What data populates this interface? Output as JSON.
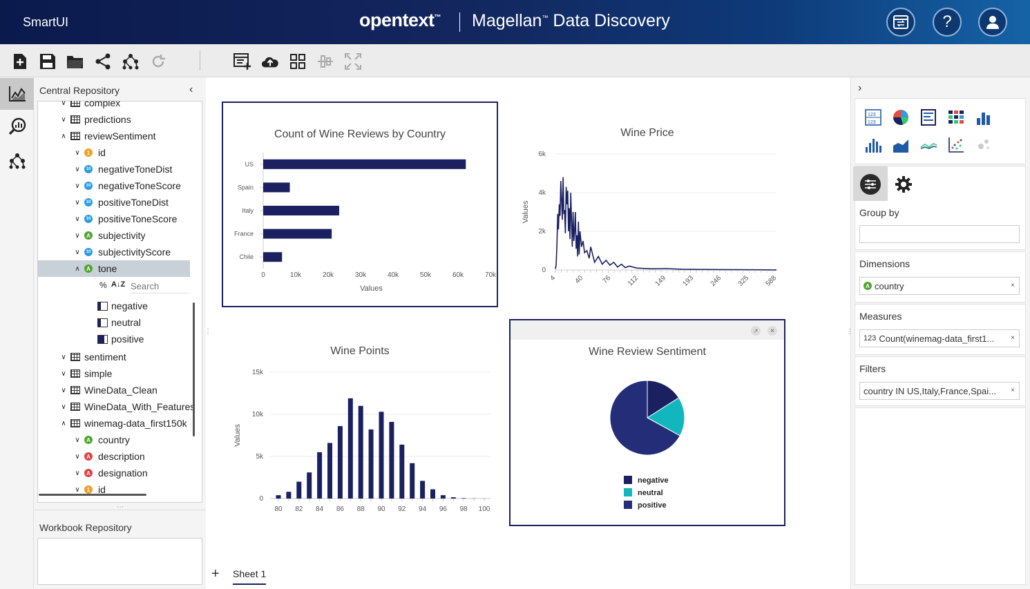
{
  "header": {
    "app_name": "SmartUI",
    "brand": "opentext",
    "brand_tm": "™",
    "product": "Magellan",
    "product_tm": "™",
    "product_suffix": "Data Discovery",
    "buttons": [
      "switch-icon",
      "help-icon",
      "user-icon"
    ],
    "help_glyph": "?"
  },
  "toolbar": {
    "left_icons": [
      "new-icon",
      "save-icon",
      "open-folder-icon",
      "share-icon",
      "workflow-icon",
      "refresh-icon"
    ],
    "right_icons": [
      "add-chart-icon",
      "cloud-upload-icon",
      "grid-icon",
      "align-icon",
      "fullscreen-icon"
    ]
  },
  "rail": [
    "chart-icon",
    "search-analytics-icon",
    "network-icon"
  ],
  "repository": {
    "title": "Central Repository",
    "items": [
      {
        "label": "complex",
        "type": "table",
        "level": 1,
        "expanded": false
      },
      {
        "label": "predictions",
        "type": "table",
        "level": 1,
        "expanded": false
      },
      {
        "label": "reviewSentiment",
        "type": "table",
        "level": 1,
        "expanded": true
      },
      {
        "label": "id",
        "type": "id",
        "level": 2
      },
      {
        "label": "negativeToneDist",
        "type": "num",
        "level": 2
      },
      {
        "label": "negativeToneScore",
        "type": "num",
        "level": 2
      },
      {
        "label": "positiveToneDist",
        "type": "num",
        "level": 2
      },
      {
        "label": "positiveToneScore",
        "type": "num",
        "level": 2
      },
      {
        "label": "subjectivity",
        "type": "str",
        "level": 2
      },
      {
        "label": "subjectivityScore",
        "type": "num",
        "level": 2
      },
      {
        "label": "tone",
        "type": "str",
        "level": 2,
        "selected": true,
        "expanded": true
      }
    ],
    "tone_search_placeholder": "Search",
    "tone_tools": [
      "%",
      "A↓Z"
    ],
    "tone_values": [
      "negative",
      "neutral",
      "positive"
    ],
    "items_after": [
      {
        "label": "sentiment",
        "type": "table",
        "level": 1
      },
      {
        "label": "simple",
        "type": "table",
        "level": 1
      },
      {
        "label": "WineData_Clean",
        "type": "table",
        "level": 1
      },
      {
        "label": "WineData_With_Features",
        "type": "table",
        "level": 1
      },
      {
        "label": "winemag-data_first150k",
        "type": "table",
        "level": 1,
        "expanded": true
      },
      {
        "label": "country",
        "type": "str",
        "level": 2
      },
      {
        "label": "description",
        "type": "red",
        "level": 2
      },
      {
        "label": "designation",
        "type": "red",
        "level": 2
      },
      {
        "label": "id",
        "type": "id",
        "level": 2
      }
    ],
    "workbook_title": "Workbook Repository"
  },
  "charts": {
    "country": {
      "title": "Count of Wine Reviews by Country",
      "xlabel": "Values"
    },
    "price": {
      "title": "Wine Price",
      "ylabel": "Values"
    },
    "points": {
      "title": "Wine Points",
      "ylabel": "Values"
    },
    "sentiment": {
      "title": "Wine Review Sentiment"
    }
  },
  "chart_data": [
    {
      "type": "bar",
      "orientation": "horizontal",
      "title": "Count of Wine Reviews by Country",
      "categories": [
        "US",
        "Spain",
        "Italy",
        "France",
        "Chile"
      ],
      "values": [
        62400,
        8200,
        23400,
        21100,
        5800
      ],
      "xlabel": "Values",
      "ylabel": "",
      "xlim": [
        0,
        70000
      ],
      "xticks": [
        "0",
        "10k",
        "20k",
        "30k",
        "40k",
        "50k",
        "60k",
        "70k"
      ],
      "color": "#1a2060"
    },
    {
      "type": "line",
      "title": "Wine Price",
      "ylabel": "Values",
      "ylim": [
        0,
        6000
      ],
      "yticks": [
        "0",
        "2k",
        "4k",
        "6k"
      ],
      "xticks": [
        "4",
        "40",
        "76",
        "112",
        "149",
        "193",
        "246",
        "325",
        "588"
      ],
      "x": [
        4,
        5,
        6,
        7,
        8,
        9,
        10,
        11,
        12,
        13,
        14,
        15,
        16,
        17,
        18,
        19,
        20,
        21,
        22,
        23,
        24,
        25,
        26,
        27,
        28,
        29,
        30,
        31,
        32,
        33,
        34,
        35,
        36,
        38,
        40,
        42,
        45,
        48,
        50,
        55,
        60,
        65,
        70,
        75,
        80,
        85,
        90,
        95,
        100,
        110,
        120,
        130,
        150,
        175,
        200,
        250,
        300,
        400,
        588
      ],
      "values": [
        50,
        300,
        1300,
        2900,
        2100,
        3400,
        2800,
        4600,
        3600,
        2600,
        4800,
        2900,
        3100,
        1900,
        4300,
        3400,
        4100,
        2000,
        3200,
        1600,
        4000,
        2600,
        1200,
        3000,
        1500,
        2000,
        3000,
        1100,
        1800,
        700,
        2500,
        800,
        2000,
        1200,
        1500,
        900,
        1000,
        600,
        1200,
        400,
        700,
        300,
        500,
        250,
        400,
        150,
        300,
        120,
        200,
        100,
        80,
        60,
        70,
        40,
        30,
        20,
        15,
        10,
        5
      ],
      "color": "#1a2060"
    },
    {
      "type": "bar",
      "title": "Wine Points",
      "ylabel": "Values",
      "ylim": [
        0,
        15000
      ],
      "yticks": [
        "0",
        "5k",
        "10k",
        "15k"
      ],
      "categories": [
        "80",
        "81",
        "82",
        "83",
        "84",
        "85",
        "86",
        "87",
        "88",
        "89",
        "90",
        "91",
        "92",
        "93",
        "94",
        "95",
        "96",
        "97",
        "98",
        "99",
        "100"
      ],
      "xticks": [
        "80",
        "82",
        "84",
        "86",
        "88",
        "90",
        "92",
        "94",
        "96",
        "98",
        "100"
      ],
      "values": [
        400,
        800,
        2000,
        3100,
        5500,
        6600,
        8600,
        11900,
        11000,
        8200,
        10300,
        9100,
        6400,
        4200,
        2100,
        1100,
        400,
        150,
        50,
        20,
        10
      ],
      "color": "#1a2060"
    },
    {
      "type": "pie",
      "title": "Wine Review Sentiment",
      "labels": [
        "negative",
        "neutral",
        "positive"
      ],
      "values": [
        16,
        17,
        67
      ],
      "colors": [
        "#1a2060",
        "#12b7bd",
        "#232d78"
      ]
    }
  ],
  "right_panel": {
    "chart_types": [
      "number-chart-icon",
      "pie-chart-icon",
      "table-chart-icon",
      "heatmap-chart-icon",
      "column-chart-icon",
      "histogram-chart-icon",
      "area-chart-icon",
      "line-chart-icon",
      "scatter-chart-icon",
      "bubble-chart-icon"
    ],
    "tabs": [
      "data-settings-icon",
      "gear-icon"
    ],
    "group_by_label": "Group by",
    "group_by_value": "",
    "dimensions_label": "Dimensions",
    "dimension_value": "country",
    "measures_label": "Measures",
    "measure_prefix": "123",
    "measure_value": "Count(winemag-data_first1...",
    "filters_label": "Filters",
    "filter_value": "country IN US,Italy,France,Spai...",
    "remove_glyph": "×"
  },
  "sheets": {
    "add_glyph": "+",
    "tabs": [
      "Sheet 1"
    ]
  }
}
